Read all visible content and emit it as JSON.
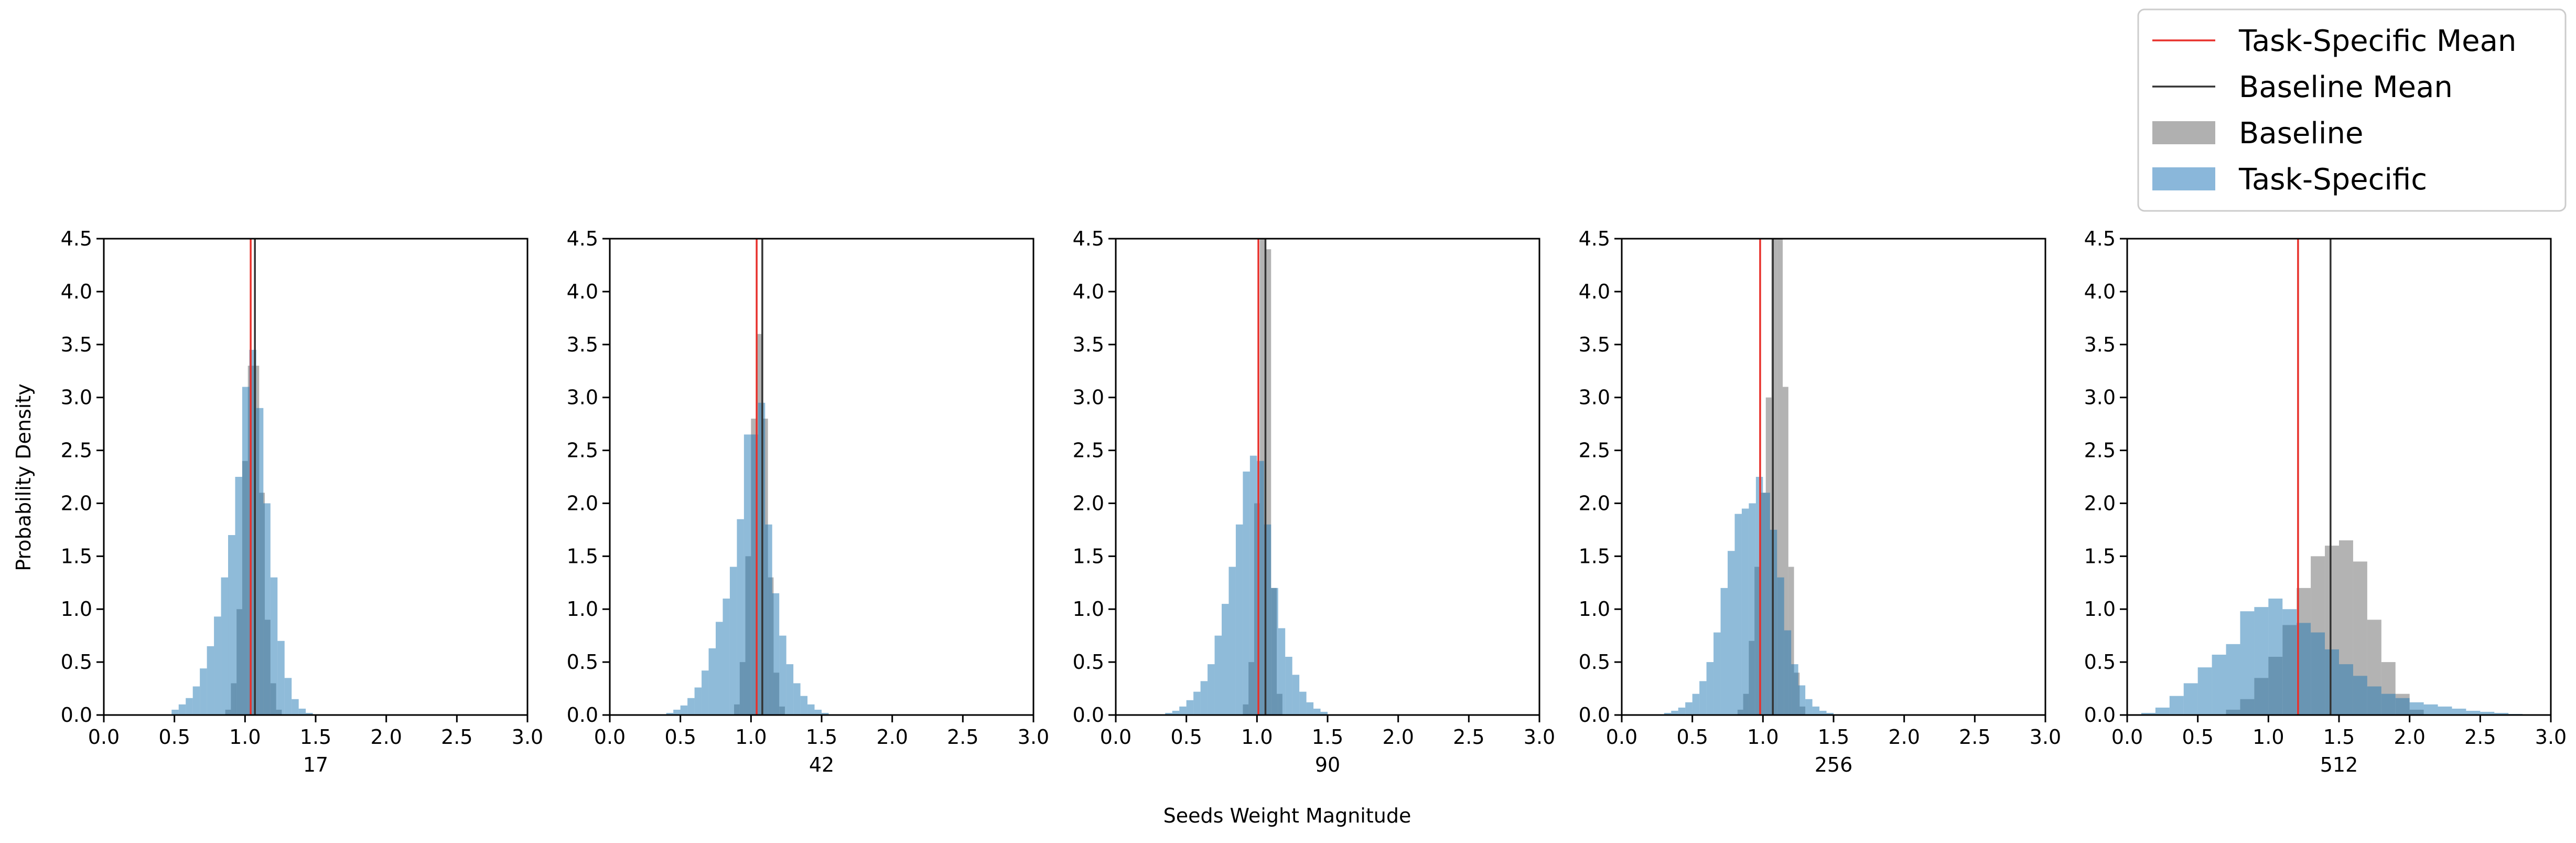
{
  "chart_data": {
    "type": "histogram",
    "ylabel": "Probability Density",
    "xlabel": "Seeds Weight Magnitude",
    "xlim": [
      0,
      3
    ],
    "ylim": [
      0,
      4.5
    ],
    "xticks": [
      "0.0",
      "0.5",
      "1.0",
      "1.5",
      "2.0",
      "2.5",
      "3.0"
    ],
    "yticks": [
      "0.0",
      "0.5",
      "1.0",
      "1.5",
      "2.0",
      "2.5",
      "3.0",
      "3.5",
      "4.0",
      "4.5"
    ],
    "grid": false,
    "legend_position": "top-right",
    "legend": [
      {
        "label": "Task-Specific Mean",
        "kind": "line",
        "color": "#e8302b"
      },
      {
        "label": "Baseline Mean",
        "kind": "line",
        "color": "#333333"
      },
      {
        "label": "Baseline",
        "kind": "patch",
        "color": "#b0b0b0"
      },
      {
        "label": "Task-Specific",
        "kind": "patch",
        "color": "#8ab7da"
      }
    ],
    "colors": {
      "baseline": "#808080",
      "task": "#1f77b4",
      "baseline_mean": "#333333",
      "task_mean": "#e8302b"
    },
    "panels": [
      {
        "title": "17",
        "baseline_mean": 1.07,
        "task_mean": 1.04,
        "baseline_bins": [
          [
            0.86,
            0.9,
            0.05
          ],
          [
            0.9,
            0.94,
            0.3
          ],
          [
            0.94,
            0.98,
            1.0
          ],
          [
            0.98,
            1.02,
            2.4
          ],
          [
            1.02,
            1.06,
            3.3
          ],
          [
            1.06,
            1.1,
            3.3
          ],
          [
            1.1,
            1.14,
            2.1
          ],
          [
            1.14,
            1.18,
            0.9
          ],
          [
            1.18,
            1.22,
            0.3
          ],
          [
            1.22,
            1.26,
            0.05
          ]
        ],
        "task_bins": [
          [
            0.48,
            0.53,
            0.05
          ],
          [
            0.53,
            0.58,
            0.1
          ],
          [
            0.58,
            0.63,
            0.16
          ],
          [
            0.63,
            0.68,
            0.27
          ],
          [
            0.68,
            0.73,
            0.44
          ],
          [
            0.73,
            0.78,
            0.65
          ],
          [
            0.78,
            0.83,
            0.93
          ],
          [
            0.83,
            0.88,
            1.3
          ],
          [
            0.88,
            0.93,
            1.7
          ],
          [
            0.93,
            0.98,
            2.25
          ],
          [
            0.98,
            1.03,
            3.1
          ],
          [
            1.03,
            1.08,
            3.45
          ],
          [
            1.08,
            1.13,
            2.9
          ],
          [
            1.13,
            1.18,
            2.0
          ],
          [
            1.18,
            1.23,
            1.3
          ],
          [
            1.23,
            1.28,
            0.7
          ],
          [
            1.28,
            1.33,
            0.35
          ],
          [
            1.33,
            1.38,
            0.15
          ],
          [
            1.38,
            1.43,
            0.06
          ],
          [
            1.43,
            1.48,
            0.02
          ]
        ]
      },
      {
        "title": "42",
        "baseline_mean": 1.08,
        "task_mean": 1.04,
        "baseline_bins": [
          [
            0.88,
            0.92,
            0.1
          ],
          [
            0.92,
            0.96,
            0.5
          ],
          [
            0.96,
            1.0,
            1.5
          ],
          [
            1.0,
            1.04,
            2.8
          ],
          [
            1.04,
            1.08,
            3.6
          ],
          [
            1.08,
            1.12,
            2.8
          ],
          [
            1.12,
            1.16,
            1.3
          ],
          [
            1.16,
            1.2,
            0.4
          ],
          [
            1.2,
            1.24,
            0.08
          ]
        ],
        "task_bins": [
          [
            0.4,
            0.45,
            0.02
          ],
          [
            0.45,
            0.5,
            0.05
          ],
          [
            0.5,
            0.55,
            0.09
          ],
          [
            0.55,
            0.6,
            0.16
          ],
          [
            0.6,
            0.65,
            0.26
          ],
          [
            0.65,
            0.7,
            0.42
          ],
          [
            0.7,
            0.75,
            0.63
          ],
          [
            0.75,
            0.8,
            0.88
          ],
          [
            0.8,
            0.85,
            1.1
          ],
          [
            0.85,
            0.9,
            1.4
          ],
          [
            0.9,
            0.95,
            1.85
          ],
          [
            0.95,
            1.0,
            2.65
          ],
          [
            1.0,
            1.05,
            2.65
          ],
          [
            1.05,
            1.1,
            2.95
          ],
          [
            1.1,
            1.15,
            1.8
          ],
          [
            1.15,
            1.2,
            1.15
          ],
          [
            1.2,
            1.25,
            0.75
          ],
          [
            1.25,
            1.3,
            0.48
          ],
          [
            1.3,
            1.35,
            0.3
          ],
          [
            1.35,
            1.4,
            0.18
          ],
          [
            1.4,
            1.45,
            0.1
          ],
          [
            1.45,
            1.5,
            0.05
          ],
          [
            1.5,
            1.55,
            0.02
          ]
        ]
      },
      {
        "title": "90",
        "baseline_mean": 1.06,
        "task_mean": 1.01,
        "baseline_bins": [
          [
            0.9,
            0.94,
            0.1
          ],
          [
            0.94,
            0.98,
            0.5
          ],
          [
            0.98,
            1.02,
            2.0
          ],
          [
            1.02,
            1.06,
            4.5
          ],
          [
            1.06,
            1.1,
            4.4
          ],
          [
            1.1,
            1.14,
            1.2
          ],
          [
            1.14,
            1.18,
            0.2
          ]
        ],
        "task_bins": [
          [
            0.35,
            0.4,
            0.02
          ],
          [
            0.4,
            0.45,
            0.04
          ],
          [
            0.45,
            0.5,
            0.08
          ],
          [
            0.5,
            0.55,
            0.14
          ],
          [
            0.55,
            0.6,
            0.22
          ],
          [
            0.6,
            0.65,
            0.32
          ],
          [
            0.65,
            0.7,
            0.48
          ],
          [
            0.7,
            0.75,
            0.75
          ],
          [
            0.75,
            0.8,
            1.05
          ],
          [
            0.8,
            0.85,
            1.4
          ],
          [
            0.85,
            0.9,
            1.8
          ],
          [
            0.9,
            0.95,
            2.3
          ],
          [
            0.95,
            1.0,
            2.45
          ],
          [
            1.0,
            1.05,
            2.4
          ],
          [
            1.05,
            1.1,
            1.8
          ],
          [
            1.1,
            1.15,
            1.2
          ],
          [
            1.15,
            1.2,
            0.82
          ],
          [
            1.2,
            1.25,
            0.55
          ],
          [
            1.25,
            1.3,
            0.38
          ],
          [
            1.3,
            1.35,
            0.22
          ],
          [
            1.35,
            1.4,
            0.12
          ],
          [
            1.4,
            1.45,
            0.06
          ],
          [
            1.45,
            1.5,
            0.03
          ]
        ]
      },
      {
        "title": "256",
        "baseline_mean": 1.07,
        "task_mean": 0.98,
        "baseline_bins": [
          [
            0.82,
            0.86,
            0.05
          ],
          [
            0.86,
            0.9,
            0.2
          ],
          [
            0.9,
            0.94,
            0.7
          ],
          [
            0.94,
            0.98,
            1.4
          ],
          [
            0.98,
            1.02,
            2.1
          ],
          [
            1.02,
            1.06,
            3.0
          ],
          [
            1.06,
            1.1,
            4.5
          ],
          [
            1.1,
            1.14,
            4.5
          ],
          [
            1.14,
            1.18,
            3.1
          ],
          [
            1.18,
            1.22,
            1.4
          ],
          [
            1.22,
            1.26,
            0.4
          ],
          [
            1.26,
            1.3,
            0.08
          ]
        ],
        "task_bins": [
          [
            0.3,
            0.35,
            0.02
          ],
          [
            0.35,
            0.4,
            0.04
          ],
          [
            0.4,
            0.45,
            0.07
          ],
          [
            0.45,
            0.5,
            0.12
          ],
          [
            0.5,
            0.55,
            0.2
          ],
          [
            0.55,
            0.6,
            0.32
          ],
          [
            0.6,
            0.65,
            0.5
          ],
          [
            0.65,
            0.7,
            0.78
          ],
          [
            0.7,
            0.75,
            1.2
          ],
          [
            0.75,
            0.8,
            1.55
          ],
          [
            0.8,
            0.85,
            1.9
          ],
          [
            0.85,
            0.9,
            1.95
          ],
          [
            0.9,
            0.95,
            2.0
          ],
          [
            0.95,
            1.0,
            2.25
          ],
          [
            1.0,
            1.05,
            2.1
          ],
          [
            1.05,
            1.1,
            1.75
          ],
          [
            1.1,
            1.15,
            1.3
          ],
          [
            1.15,
            1.2,
            0.8
          ],
          [
            1.2,
            1.25,
            0.48
          ],
          [
            1.25,
            1.3,
            0.28
          ],
          [
            1.3,
            1.35,
            0.15
          ],
          [
            1.35,
            1.4,
            0.08
          ],
          [
            1.4,
            1.45,
            0.04
          ],
          [
            1.45,
            1.5,
            0.02
          ]
        ]
      },
      {
        "title": "512",
        "baseline_mean": 1.44,
        "task_mean": 1.21,
        "baseline_bins": [
          [
            0.7,
            0.8,
            0.05
          ],
          [
            0.8,
            0.9,
            0.15
          ],
          [
            0.9,
            1.0,
            0.35
          ],
          [
            1.0,
            1.1,
            0.55
          ],
          [
            1.1,
            1.2,
            0.85
          ],
          [
            1.2,
            1.3,
            1.2
          ],
          [
            1.3,
            1.4,
            1.5
          ],
          [
            1.4,
            1.5,
            1.6
          ],
          [
            1.5,
            1.6,
            1.65
          ],
          [
            1.6,
            1.7,
            1.45
          ],
          [
            1.7,
            1.8,
            0.9
          ],
          [
            1.8,
            1.9,
            0.5
          ],
          [
            1.9,
            2.0,
            0.2
          ],
          [
            2.0,
            2.1,
            0.05
          ]
        ],
        "task_bins": [
          [
            0.1,
            0.2,
            0.02
          ],
          [
            0.2,
            0.3,
            0.07
          ],
          [
            0.3,
            0.4,
            0.18
          ],
          [
            0.4,
            0.5,
            0.3
          ],
          [
            0.5,
            0.6,
            0.45
          ],
          [
            0.6,
            0.7,
            0.57
          ],
          [
            0.7,
            0.8,
            0.67
          ],
          [
            0.8,
            0.9,
            0.98
          ],
          [
            0.9,
            1.0,
            1.02
          ],
          [
            1.0,
            1.1,
            1.1
          ],
          [
            1.1,
            1.2,
            1.0
          ],
          [
            1.2,
            1.3,
            0.87
          ],
          [
            1.3,
            1.4,
            0.78
          ],
          [
            1.4,
            1.5,
            0.62
          ],
          [
            1.5,
            1.6,
            0.48
          ],
          [
            1.6,
            1.7,
            0.37
          ],
          [
            1.7,
            1.8,
            0.27
          ],
          [
            1.8,
            1.9,
            0.2
          ],
          [
            1.9,
            2.0,
            0.16
          ],
          [
            2.0,
            2.1,
            0.12
          ],
          [
            2.1,
            2.2,
            0.1
          ],
          [
            2.2,
            2.3,
            0.08
          ],
          [
            2.3,
            2.4,
            0.06
          ],
          [
            2.4,
            2.5,
            0.04
          ],
          [
            2.5,
            2.6,
            0.03
          ],
          [
            2.6,
            2.7,
            0.02
          ],
          [
            2.7,
            2.8,
            0.01
          ]
        ]
      }
    ]
  }
}
